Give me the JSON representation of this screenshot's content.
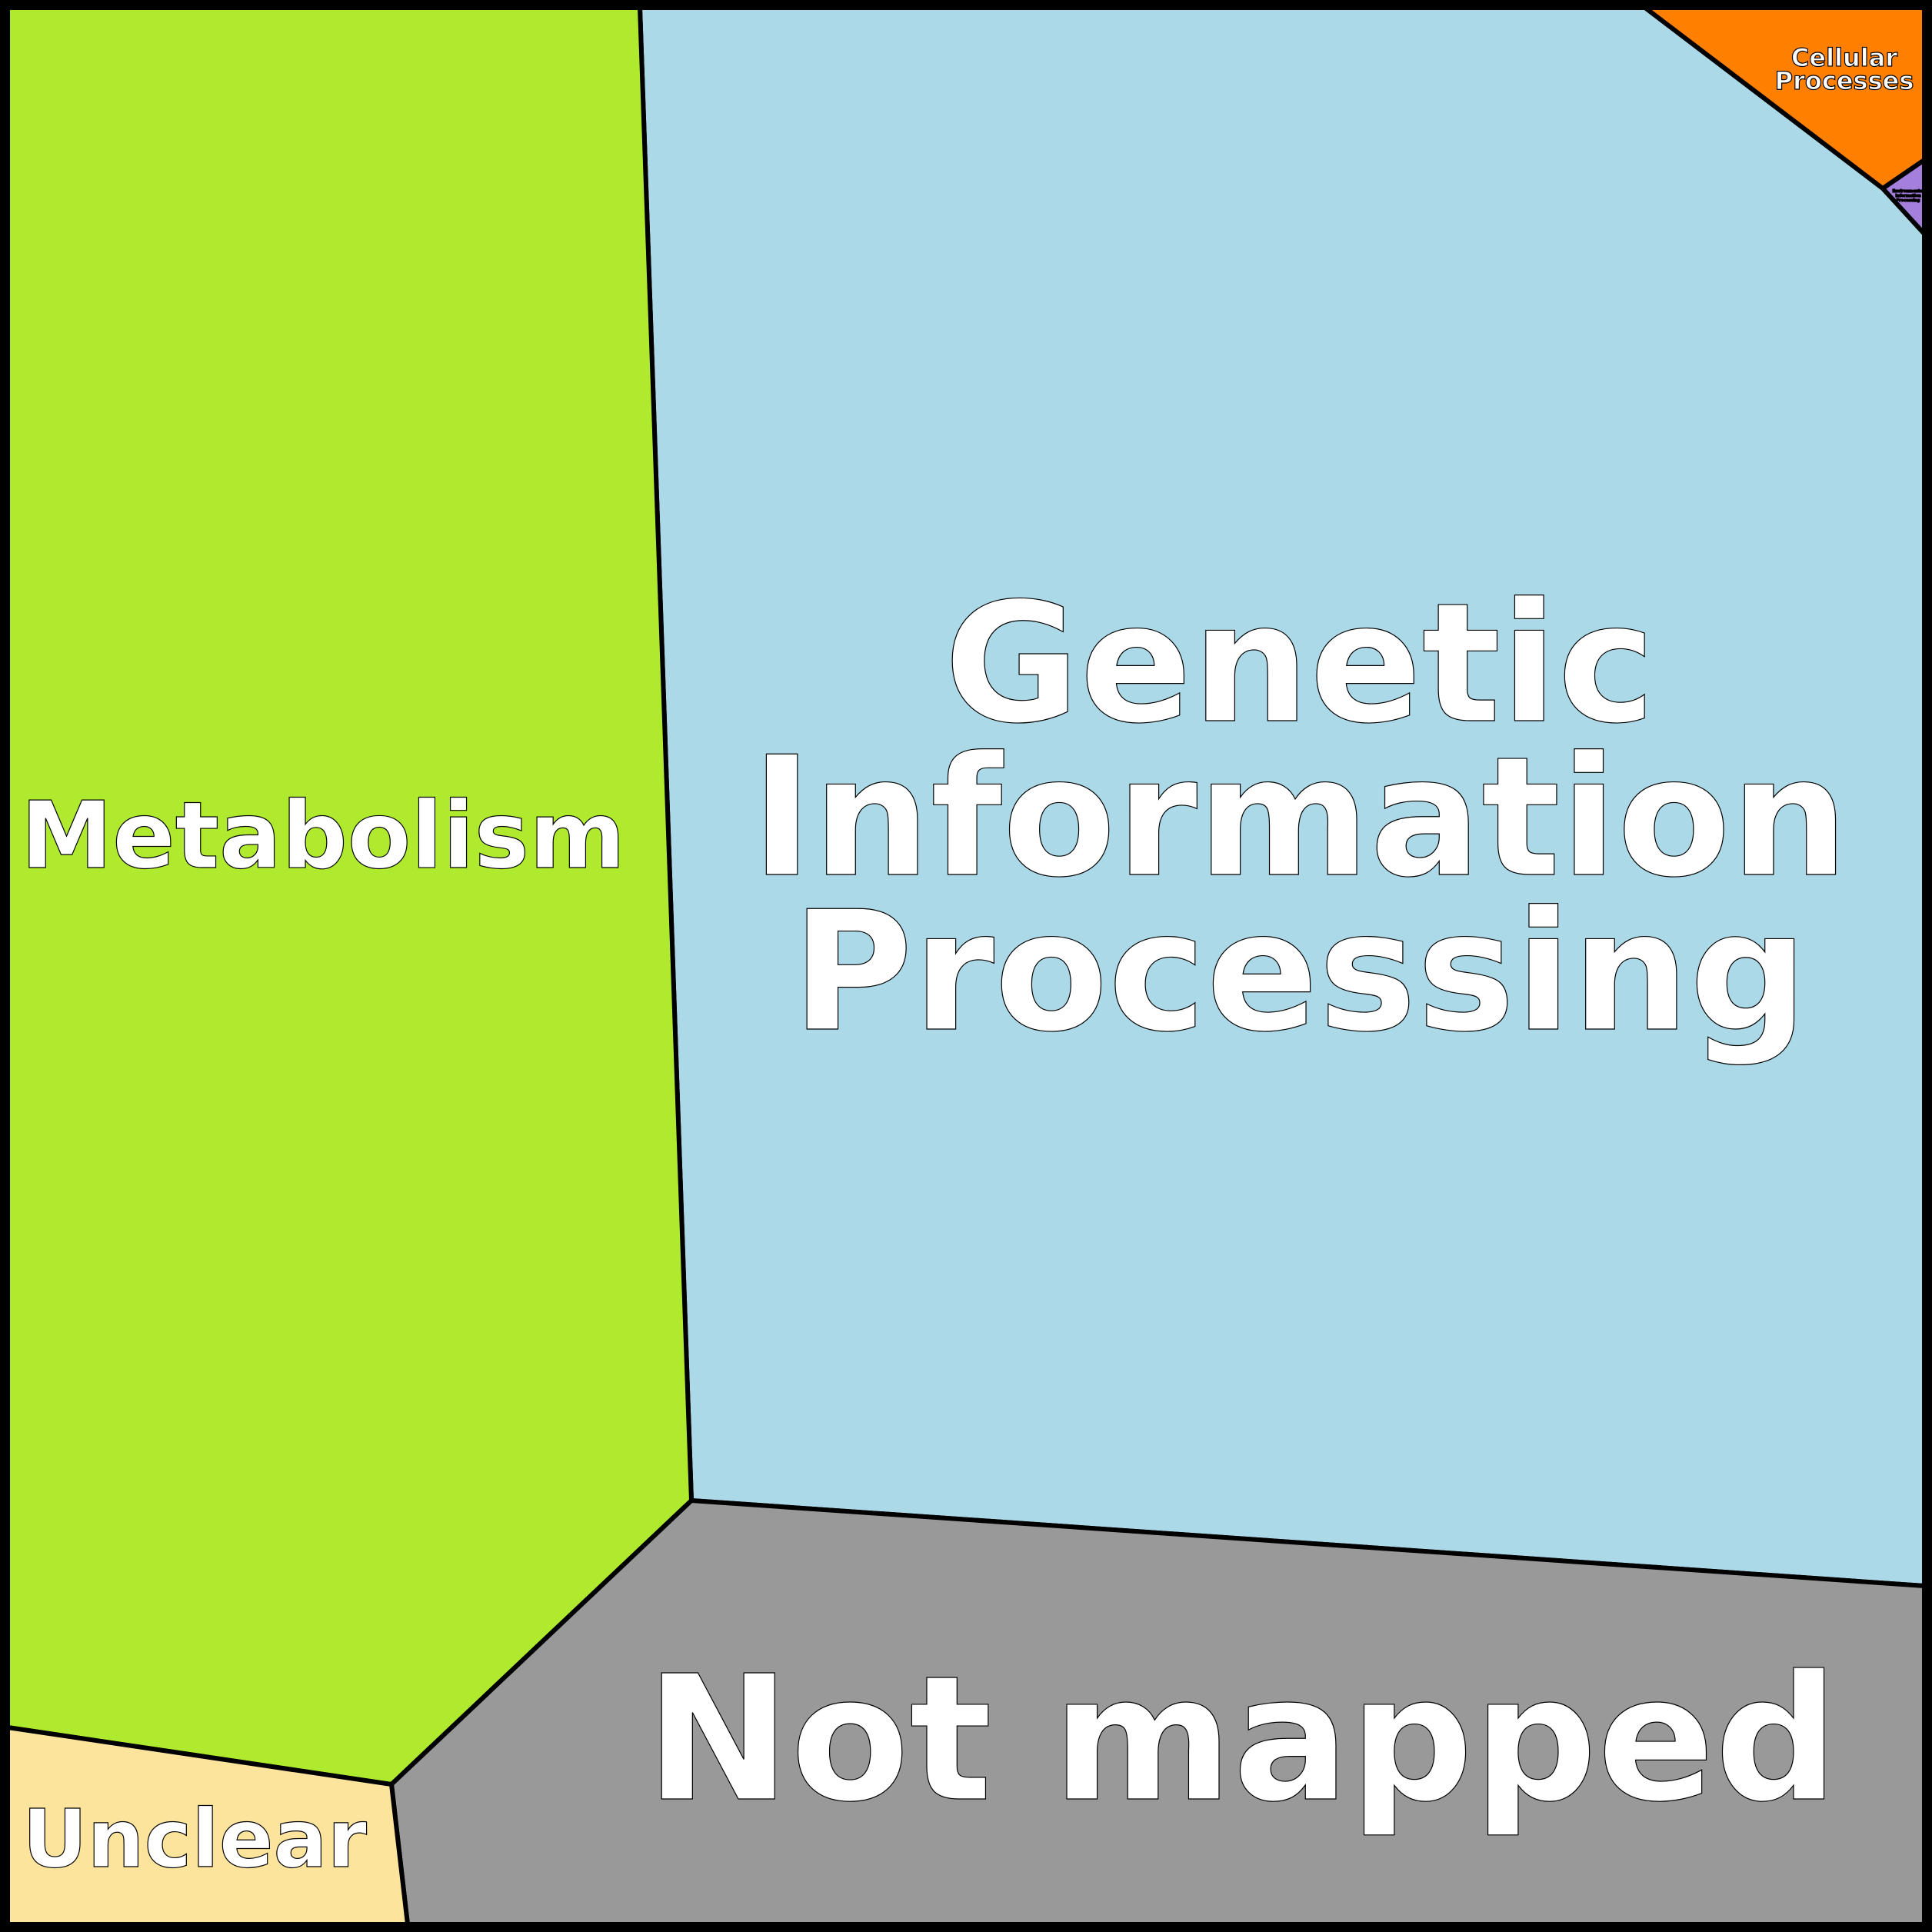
{
  "cells": [
    {
      "label": "Metabolism",
      "color": "#b0ea2f"
    },
    {
      "label_lines": [
        "Genetic",
        "Information",
        "Processing"
      ],
      "color": "#acd9e7"
    },
    {
      "label": "Not mapped",
      "color": "#999999"
    },
    {
      "label": "Unclear",
      "color": "#fde49c"
    },
    {
      "label_lines": [
        "Cellular",
        "Processes"
      ],
      "color": "#ff8000"
    },
    {
      "label_lines": [
        "Environmental",
        "Information",
        "Processing"
      ],
      "color": "#a57fdc"
    }
  ]
}
